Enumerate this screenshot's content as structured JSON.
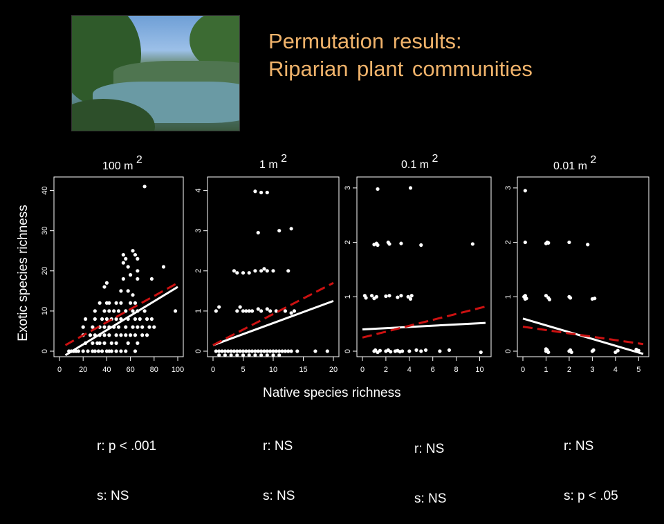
{
  "title_line1": "Permutation results:",
  "title_line2": "Riparian plant communities",
  "y_axis_label": "Exotic species richness",
  "x_axis_label": "Native species richness",
  "stats": [
    {
      "r": "r: p < .001",
      "s": "s: NS"
    },
    {
      "r": "r: NS",
      "s": "s: NS"
    },
    {
      "r": "r: NS",
      "s": "s: NS"
    },
    {
      "r": "r: NS",
      "s": "s: p < .05"
    }
  ],
  "colors": {
    "title": "#f0b36b",
    "fit_solid": "#ffffff",
    "fit_dashed": "#cc1111",
    "points": "#ffffff"
  },
  "chart_data": [
    {
      "type": "scatter",
      "title": "100 m",
      "title_sup": "2",
      "xlim": [
        0,
        100
      ],
      "ylim": [
        0,
        42
      ],
      "xticks": [
        0,
        20,
        40,
        60,
        80,
        100
      ],
      "yticks": [
        0,
        10,
        20,
        30,
        40
      ],
      "solid_fit": [
        [
          5,
          -1
        ],
        [
          100,
          16
        ]
      ],
      "dashed_fit": [
        [
          5,
          1.5
        ],
        [
          100,
          17
        ]
      ],
      "points": [
        [
          8,
          0
        ],
        [
          10,
          0
        ],
        [
          12,
          0
        ],
        [
          14,
          0
        ],
        [
          16,
          0
        ],
        [
          20,
          0
        ],
        [
          24,
          0
        ],
        [
          28,
          0
        ],
        [
          30,
          0
        ],
        [
          33,
          0
        ],
        [
          36,
          0
        ],
        [
          40,
          0
        ],
        [
          42,
          0
        ],
        [
          44,
          0
        ],
        [
          48,
          0
        ],
        [
          52,
          0
        ],
        [
          56,
          0
        ],
        [
          64,
          0
        ],
        [
          22,
          2
        ],
        [
          28,
          2
        ],
        [
          32,
          2
        ],
        [
          34,
          2
        ],
        [
          38,
          2
        ],
        [
          44,
          2
        ],
        [
          48,
          2
        ],
        [
          58,
          2
        ],
        [
          66,
          2
        ],
        [
          20,
          4
        ],
        [
          26,
          4
        ],
        [
          30,
          4
        ],
        [
          34,
          4
        ],
        [
          38,
          4
        ],
        [
          42,
          4
        ],
        [
          48,
          4
        ],
        [
          52,
          4
        ],
        [
          56,
          4
        ],
        [
          60,
          4
        ],
        [
          64,
          4
        ],
        [
          70,
          4
        ],
        [
          74,
          4
        ],
        [
          20,
          6
        ],
        [
          28,
          6
        ],
        [
          34,
          6
        ],
        [
          38,
          6
        ],
        [
          42,
          6
        ],
        [
          46,
          6
        ],
        [
          50,
          6
        ],
        [
          56,
          6
        ],
        [
          62,
          6
        ],
        [
          66,
          6
        ],
        [
          70,
          6
        ],
        [
          76,
          6
        ],
        [
          80,
          6
        ],
        [
          22,
          8
        ],
        [
          30,
          8
        ],
        [
          36,
          8
        ],
        [
          40,
          8
        ],
        [
          44,
          8
        ],
        [
          48,
          8
        ],
        [
          52,
          8
        ],
        [
          58,
          8
        ],
        [
          64,
          8
        ],
        [
          68,
          8
        ],
        [
          74,
          8
        ],
        [
          78,
          8
        ],
        [
          30,
          10
        ],
        [
          38,
          10
        ],
        [
          42,
          10
        ],
        [
          46,
          10
        ],
        [
          50,
          10
        ],
        [
          56,
          10
        ],
        [
          62,
          10
        ],
        [
          66,
          10
        ],
        [
          72,
          10
        ],
        [
          34,
          12
        ],
        [
          40,
          12
        ],
        [
          42,
          12
        ],
        [
          48,
          12
        ],
        [
          52,
          12
        ],
        [
          60,
          12
        ],
        [
          64,
          12
        ],
        [
          38,
          16
        ],
        [
          40,
          17
        ],
        [
          52,
          15
        ],
        [
          58,
          15
        ],
        [
          62,
          14
        ],
        [
          54,
          18
        ],
        [
          60,
          19
        ],
        [
          66,
          18
        ],
        [
          78,
          18
        ],
        [
          54,
          22
        ],
        [
          58,
          21
        ],
        [
          66,
          20
        ],
        [
          88,
          21
        ],
        [
          54,
          24
        ],
        [
          56,
          23
        ],
        [
          62,
          25
        ],
        [
          64,
          24
        ],
        [
          66,
          23
        ],
        [
          72,
          41
        ],
        [
          98,
          10
        ]
      ]
    },
    {
      "type": "scatter",
      "title": "1 m",
      "title_sup": "2",
      "xlim": [
        0,
        20
      ],
      "ylim": [
        0,
        4.2
      ],
      "xticks": [
        0,
        5,
        10,
        15,
        20
      ],
      "yticks": [
        0,
        1,
        2,
        3,
        4
      ],
      "solid_fit": [
        [
          0,
          0.15
        ],
        [
          20,
          1.25
        ]
      ],
      "dashed_fit": [
        [
          0,
          0.15
        ],
        [
          20,
          1.7
        ]
      ],
      "points": [
        [
          0.5,
          0
        ],
        [
          1,
          0
        ],
        [
          1.5,
          0
        ],
        [
          2,
          0
        ],
        [
          2.5,
          0
        ],
        [
          3,
          0
        ],
        [
          3.5,
          0
        ],
        [
          4,
          0
        ],
        [
          4.5,
          0
        ],
        [
          5,
          0
        ],
        [
          5.5,
          0
        ],
        [
          6,
          0
        ],
        [
          6.5,
          0
        ],
        [
          7,
          0
        ],
        [
          7.5,
          0
        ],
        [
          8,
          0
        ],
        [
          8.5,
          0
        ],
        [
          9,
          0
        ],
        [
          9.5,
          0
        ],
        [
          10,
          0
        ],
        [
          10.5,
          0
        ],
        [
          11,
          0
        ],
        [
          11.5,
          0
        ],
        [
          12,
          0
        ],
        [
          12.5,
          0
        ],
        [
          13,
          0
        ],
        [
          14,
          0
        ],
        [
          17,
          0
        ],
        [
          19,
          0
        ],
        [
          1,
          -0.1
        ],
        [
          2,
          -0.1
        ],
        [
          3,
          -0.1
        ],
        [
          4,
          -0.1
        ],
        [
          5,
          -0.1
        ],
        [
          6,
          -0.1
        ],
        [
          7,
          -0.1
        ],
        [
          8,
          -0.1
        ],
        [
          9,
          -0.1
        ],
        [
          10,
          -0.1
        ],
        [
          11,
          -0.1
        ],
        [
          0.5,
          1
        ],
        [
          1,
          1.1
        ],
        [
          4,
          1
        ],
        [
          4.5,
          1.1
        ],
        [
          5,
          1
        ],
        [
          5.5,
          1
        ],
        [
          6,
          1
        ],
        [
          6.5,
          1
        ],
        [
          7.5,
          1.05
        ],
        [
          8,
          1
        ],
        [
          9,
          1.05
        ],
        [
          9.5,
          1
        ],
        [
          10.5,
          1
        ],
        [
          12,
          1
        ],
        [
          13,
          0.95
        ],
        [
          13.5,
          1
        ],
        [
          3.5,
          2
        ],
        [
          4,
          1.95
        ],
        [
          5,
          1.95
        ],
        [
          6,
          1.95
        ],
        [
          7,
          2
        ],
        [
          8,
          2
        ],
        [
          8.5,
          2.05
        ],
        [
          9,
          2
        ],
        [
          10,
          2
        ],
        [
          12.5,
          2
        ],
        [
          7.5,
          2.95
        ],
        [
          11,
          3
        ],
        [
          13,
          3.05
        ],
        [
          7,
          3.98
        ],
        [
          8,
          3.95
        ],
        [
          9,
          3.95
        ]
      ]
    },
    {
      "type": "scatter",
      "title": "0.1 m",
      "title_sup": "2",
      "xlim": [
        0,
        10.5
      ],
      "ylim": [
        0,
        3.1
      ],
      "xticks": [
        0,
        2,
        4,
        6,
        8,
        10
      ],
      "yticks": [
        0,
        1,
        2,
        3
      ],
      "solid_fit": [
        [
          0,
          0.4
        ],
        [
          10.5,
          0.52
        ]
      ],
      "dashed_fit": [
        [
          0,
          0.25
        ],
        [
          10.5,
          0.82
        ]
      ],
      "points": [
        [
          1,
          0
        ],
        [
          1.1,
          0.02
        ],
        [
          1.3,
          -0.02
        ],
        [
          1.5,
          0.01
        ],
        [
          2,
          0
        ],
        [
          2.2,
          0.02
        ],
        [
          2.4,
          -0.01
        ],
        [
          2.8,
          0
        ],
        [
          3,
          0.01
        ],
        [
          3.2,
          -0.01
        ],
        [
          3.4,
          0
        ],
        [
          4,
          0
        ],
        [
          4.6,
          0.02
        ],
        [
          5,
          0
        ],
        [
          5.4,
          0.02
        ],
        [
          6.6,
          0
        ],
        [
          7.4,
          0.02
        ],
        [
          10.1,
          -0.02
        ],
        [
          0.2,
          1.02
        ],
        [
          0.3,
          0.98
        ],
        [
          0.8,
          1.02
        ],
        [
          1,
          0.97
        ],
        [
          1.2,
          1.0
        ],
        [
          2,
          1.01
        ],
        [
          2.3,
          1.02
        ],
        [
          3,
          0.99
        ],
        [
          3.3,
          1.02
        ],
        [
          3.9,
          1.0
        ],
        [
          4.1,
          0.96
        ],
        [
          4.2,
          1.02
        ],
        [
          1,
          1.96
        ],
        [
          1.2,
          1.98
        ],
        [
          1.3,
          1.95
        ],
        [
          2.2,
          2.0
        ],
        [
          2.3,
          1.97
        ],
        [
          3.3,
          1.98
        ],
        [
          5,
          1.95
        ],
        [
          9.4,
          1.97
        ],
        [
          1.3,
          2.98
        ],
        [
          4.1,
          3.0
        ]
      ]
    },
    {
      "type": "scatter",
      "title": "0.01 m",
      "title_sup": "2",
      "xlim": [
        0,
        5.2
      ],
      "ylim": [
        0,
        3.1
      ],
      "xticks": [
        0,
        1,
        2,
        3,
        4,
        5
      ],
      "yticks": [
        0,
        1,
        2,
        3
      ],
      "solid_fit": [
        [
          0,
          0.6
        ],
        [
          5.2,
          -0.05
        ]
      ],
      "dashed_fit": [
        [
          0,
          0.45
        ],
        [
          5.2,
          0.13
        ]
      ],
      "points": [
        [
          1,
          0
        ],
        [
          1.05,
          0.02
        ],
        [
          1.1,
          -0.02
        ],
        [
          1,
          0.04
        ],
        [
          2,
          0
        ],
        [
          2.05,
          0.02
        ],
        [
          2.1,
          -0.02
        ],
        [
          3,
          0
        ],
        [
          3.05,
          0.02
        ],
        [
          4,
          -0.02
        ],
        [
          4.1,
          0.01
        ],
        [
          4.9,
          0.03
        ],
        [
          5,
          0.01
        ],
        [
          0.05,
          1.0
        ],
        [
          0.1,
          1.02
        ],
        [
          0.15,
          0.97
        ],
        [
          0.1,
          0.96
        ],
        [
          1,
          1.02
        ],
        [
          1.1,
          0.98
        ],
        [
          1.15,
          0.95
        ],
        [
          2,
          1.0
        ],
        [
          2.05,
          0.98
        ],
        [
          3,
          0.96
        ],
        [
          3.1,
          0.97
        ],
        [
          0.1,
          2.0
        ],
        [
          1,
          1.98
        ],
        [
          1.05,
          2.0
        ],
        [
          1.1,
          1.99
        ],
        [
          2,
          2.0
        ],
        [
          2.8,
          1.96
        ],
        [
          0.1,
          2.95
        ]
      ]
    }
  ]
}
